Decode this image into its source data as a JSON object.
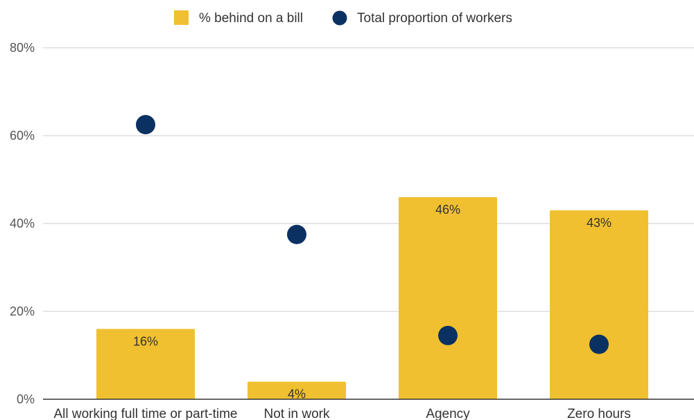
{
  "chart_data": {
    "type": "bar",
    "categories": [
      "All working full time or part-time",
      "Not in work",
      "Agency",
      "Zero hours"
    ],
    "series": [
      {
        "name": "% behind on a bill",
        "kind": "bar",
        "color": "#F0C030",
        "values": [
          16,
          4,
          46,
          43
        ],
        "data_labels": [
          "16%",
          "4%",
          "46%",
          "43%"
        ]
      },
      {
        "name": "Total proportion of workers",
        "kind": "scatter",
        "color": "#0B3163",
        "values": [
          62.5,
          37.5,
          14.5,
          12.5
        ]
      }
    ],
    "ylim": [
      0,
      80
    ],
    "yticks": [
      0,
      20,
      40,
      60,
      80
    ],
    "ytick_labels": [
      "0%",
      "20%",
      "40%",
      "60%",
      "80%"
    ],
    "title": "",
    "xlabel": "",
    "ylabel": "",
    "grid": true,
    "legend_position": "top"
  }
}
